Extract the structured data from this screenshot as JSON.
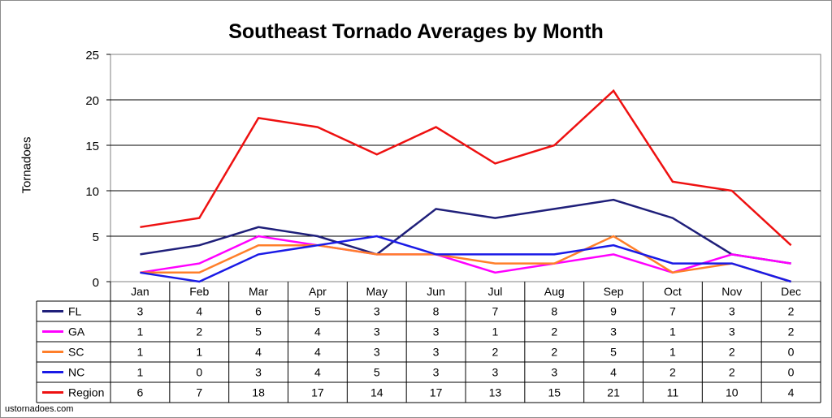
{
  "chart_data": {
    "type": "line",
    "title": "Southeast Tornado Averages by Month",
    "ylabel": "Tornadoes",
    "xlabel": "",
    "ylim": [
      0,
      25
    ],
    "yticks": [
      0,
      5,
      10,
      15,
      20,
      25
    ],
    "grid": true,
    "legend": "data-table-left",
    "categories": [
      "Jan",
      "Feb",
      "Mar",
      "Apr",
      "May",
      "Jun",
      "Jul",
      "Aug",
      "Sep",
      "Oct",
      "Nov",
      "Dec"
    ],
    "series": [
      {
        "name": "FL",
        "color": "#1f1f7a",
        "values": [
          3,
          4,
          6,
          5,
          3,
          8,
          7,
          8,
          9,
          7,
          3,
          2
        ]
      },
      {
        "name": "GA",
        "color": "#ff00ff",
        "values": [
          1,
          2,
          5,
          4,
          3,
          3,
          1,
          2,
          3,
          1,
          3,
          2
        ]
      },
      {
        "name": "SC",
        "color": "#ff7f2a",
        "values": [
          1,
          1,
          4,
          4,
          3,
          3,
          2,
          2,
          5,
          1,
          2,
          0
        ]
      },
      {
        "name": "NC",
        "color": "#1a1ae6",
        "values": [
          1,
          0,
          3,
          4,
          5,
          3,
          3,
          3,
          4,
          2,
          2,
          0
        ]
      },
      {
        "name": "Region",
        "color": "#ee1111",
        "values": [
          6,
          7,
          18,
          17,
          14,
          17,
          13,
          15,
          21,
          11,
          10,
          4
        ]
      }
    ]
  },
  "footer": {
    "credit": "ustornadoes.com"
  }
}
